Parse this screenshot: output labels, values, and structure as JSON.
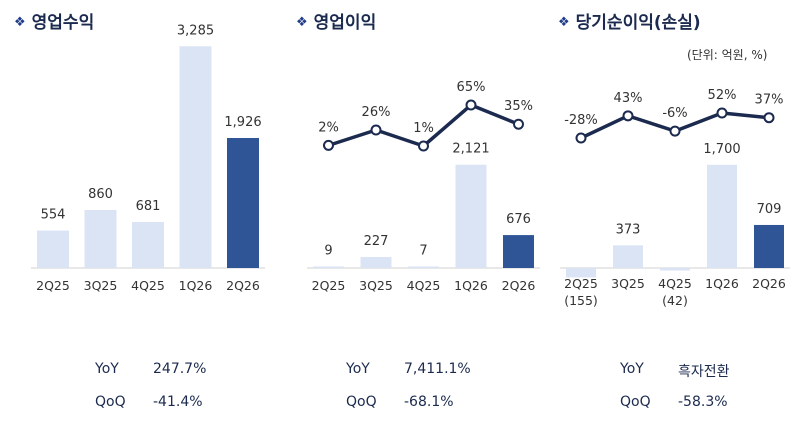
{
  "colors": {
    "light_bar": "#dbe4f4",
    "dark_bar": "#2f5597",
    "line": "#1b2a4e",
    "text": "#333333",
    "title": "#1b2a4e"
  },
  "marker_glyph": "❖",
  "unit_note": "(단위: 억원, %)",
  "chart_data": [
    {
      "type": "bar",
      "title": "영업수익",
      "categories": [
        "2Q25",
        "3Q25",
        "4Q25",
        "1Q26",
        "2Q26"
      ],
      "values": [
        554,
        860,
        681,
        3285,
        1926
      ],
      "value_labels": [
        "554",
        "860",
        "681",
        "3,285",
        "1,926"
      ],
      "highlight_index": 4,
      "yoy_label": "YoY",
      "yoy_value": "247.7%",
      "qoq_label": "QoQ",
      "qoq_value": "-41.4%"
    },
    {
      "type": "bar",
      "title": "영업이익",
      "categories": [
        "2Q25",
        "3Q25",
        "4Q25",
        "1Q26",
        "2Q26"
      ],
      "values": [
        9,
        227,
        7,
        2121,
        676
      ],
      "value_labels": [
        "9",
        "227",
        "7",
        "2,121",
        "676"
      ],
      "highlight_index": 4,
      "line_series": {
        "values": [
          2,
          26,
          1,
          65,
          35
        ],
        "labels": [
          "2%",
          "26%",
          "1%",
          "65%",
          "35%"
        ]
      },
      "yoy_label": "YoY",
      "yoy_value": "7,411.1%",
      "qoq_label": "QoQ",
      "qoq_value": "-68.1%"
    },
    {
      "type": "bar",
      "title": "당기순이익(손실)",
      "categories": [
        "2Q25",
        "3Q25",
        "4Q25",
        "1Q26",
        "2Q26"
      ],
      "values": [
        -155,
        373,
        -42,
        1700,
        709
      ],
      "value_labels": [
        "(155)",
        "373",
        "(42)",
        "1,700",
        "709"
      ],
      "highlight_index": 4,
      "line_series": {
        "values": [
          -28,
          43,
          -6,
          52,
          37
        ],
        "labels": [
          "-28%",
          "43%",
          "-6%",
          "52%",
          "37%"
        ]
      },
      "yoy_label": "YoY",
      "yoy_value": "흑자전환",
      "qoq_label": "QoQ",
      "qoq_value": "-58.3%"
    }
  ]
}
